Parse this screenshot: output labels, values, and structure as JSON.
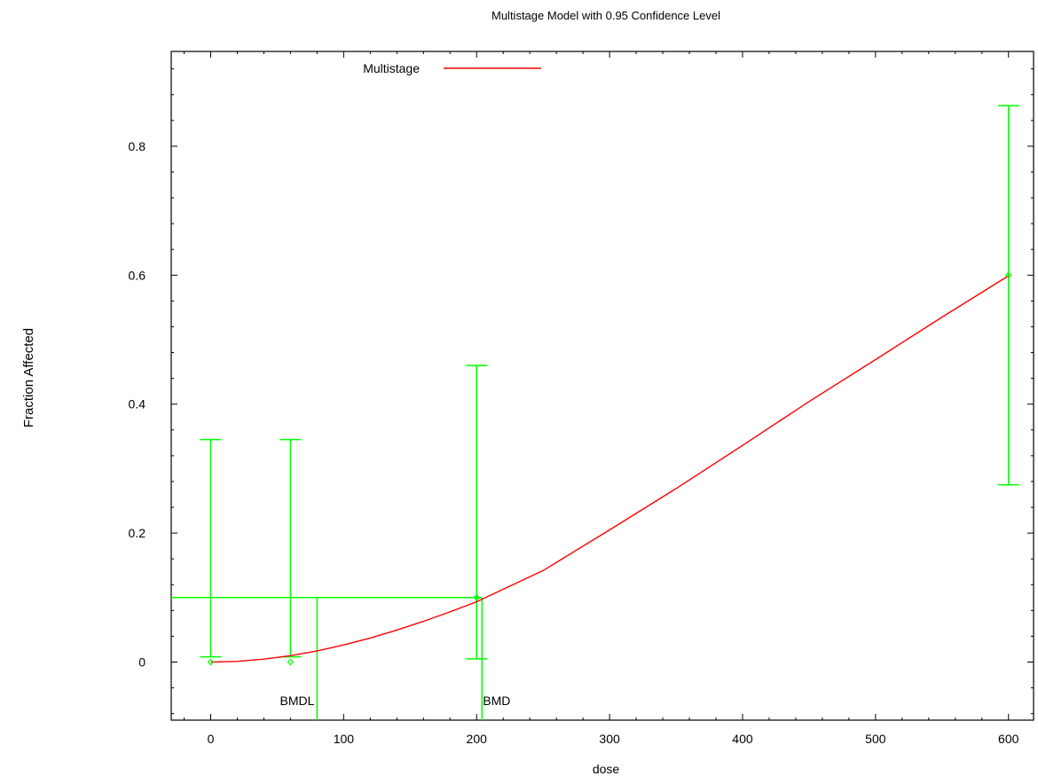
{
  "chart_data": {
    "type": "scatter",
    "title": "Multistage Model with 0.95 Confidence Level",
    "xlabel": "dose",
    "ylabel": "Fraction Affected",
    "xlim": [
      -30,
      625
    ],
    "ylim": [
      -0.085,
      0.95
    ],
    "x_ticks": [
      0,
      100,
      200,
      300,
      400,
      500,
      600
    ],
    "x_tick_labels": [
      "0",
      "100",
      "200",
      "300",
      "400",
      "500",
      "600"
    ],
    "y_ticks": [
      0,
      0.2,
      0.4,
      0.6,
      0.8
    ],
    "y_tick_labels": [
      "0",
      "0.2",
      "0.4",
      "0.6",
      "0.8"
    ],
    "grid": false,
    "legend": {
      "position": "top-center",
      "entries": [
        {
          "label": "Multistage",
          "color": "#ff0000"
        }
      ]
    },
    "model_curve": {
      "name": "Multistage",
      "color": "#ff0000",
      "x": [
        0,
        20,
        40,
        60,
        80,
        100,
        120,
        140,
        160,
        180,
        200,
        250,
        300,
        350,
        400,
        450,
        500,
        550,
        600
      ],
      "y": [
        0.0,
        0.0011,
        0.0045,
        0.0099,
        0.0174,
        0.0266,
        0.0373,
        0.0496,
        0.0631,
        0.0778,
        0.0935,
        0.142,
        0.205,
        0.269,
        0.336,
        0.404,
        0.469,
        0.535,
        0.599
      ]
    },
    "observed": {
      "color": "#00ff00",
      "points": [
        {
          "x": 0,
          "y": 0.0,
          "lower": 0.008,
          "upper": 0.345
        },
        {
          "x": 60,
          "y": 0.0,
          "lower": 0.008,
          "upper": 0.345
        },
        {
          "x": 200,
          "y": 0.1,
          "lower": 0.005,
          "upper": 0.46
        },
        {
          "x": 600,
          "y": 0.6,
          "lower": 0.275,
          "upper": 0.863
        }
      ]
    },
    "bmr_level": 0.1,
    "bmd": {
      "label": "BMD",
      "value": 204
    },
    "bmdl": {
      "label": "BMDL",
      "value": 80
    }
  }
}
